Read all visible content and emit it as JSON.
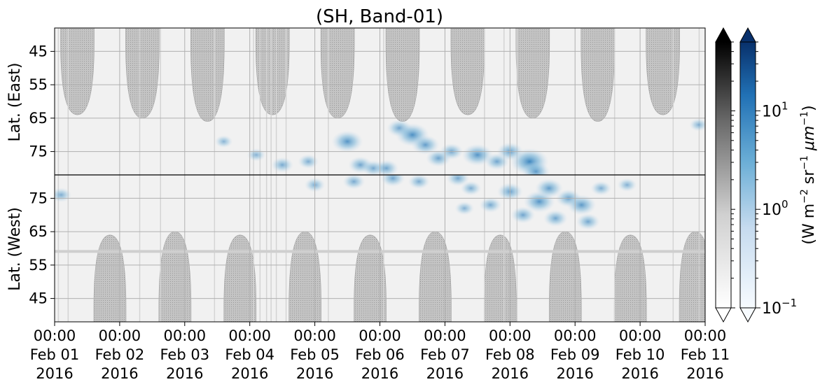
{
  "chart_data": {
    "type": "heatmap",
    "title": "(SH, Band-01)",
    "panels": [
      {
        "name": "east",
        "ylabel": "Lat. (East)",
        "yticks": [
          45,
          55,
          65,
          75
        ],
        "ylim": [
          38,
          82
        ],
        "direction": "down"
      },
      {
        "name": "west",
        "ylabel": "Lat. (West)",
        "yticks": [
          75,
          65,
          55,
          45
        ],
        "ylim": [
          38,
          82
        ],
        "direction": "up"
      }
    ],
    "x_range_days": [
      0,
      10
    ],
    "x_ticks": [
      {
        "time": "00:00",
        "date": "Feb 01",
        "year": "2016"
      },
      {
        "time": "00:00",
        "date": "Feb 02",
        "year": "2016"
      },
      {
        "time": "00:00",
        "date": "Feb 03",
        "year": "2016"
      },
      {
        "time": "00:00",
        "date": "Feb 04",
        "year": "2016"
      },
      {
        "time": "00:00",
        "date": "Feb 05",
        "year": "2016"
      },
      {
        "time": "00:00",
        "date": "Feb 06",
        "year": "2016"
      },
      {
        "time": "00:00",
        "date": "Feb 07",
        "year": "2016"
      },
      {
        "time": "00:00",
        "date": "Feb 08",
        "year": "2016"
      },
      {
        "time": "00:00",
        "date": "Feb 09",
        "year": "2016"
      },
      {
        "time": "00:00",
        "date": "Feb 10",
        "year": "2016"
      },
      {
        "time": "00:00",
        "date": "Feb 11",
        "year": "2016"
      }
    ],
    "grid": true,
    "daylight_arcs_east": [
      0.35,
      1.35,
      2.35,
      3.35,
      4.35,
      5.35,
      6.35,
      7.35,
      8.35,
      9.35
    ],
    "daylight_arcs_west": [
      0.85,
      1.85,
      2.85,
      3.85,
      4.85,
      5.85,
      6.85,
      7.85,
      8.85,
      9.85
    ],
    "blue_patches": [
      {
        "panel": "east",
        "day": 2.6,
        "lat": 72,
        "val": 0.6
      },
      {
        "panel": "east",
        "day": 3.1,
        "lat": 76,
        "val": 0.7
      },
      {
        "panel": "east",
        "day": 3.5,
        "lat": 79,
        "val": 1.2
      },
      {
        "panel": "east",
        "day": 3.9,
        "lat": 78,
        "val": 1.0
      },
      {
        "panel": "east",
        "day": 4.5,
        "lat": 72,
        "val": 2.5
      },
      {
        "panel": "east",
        "day": 4.7,
        "lat": 79,
        "val": 1.5
      },
      {
        "panel": "east",
        "day": 4.9,
        "lat": 80,
        "val": 1.3
      },
      {
        "panel": "east",
        "day": 5.1,
        "lat": 80,
        "val": 1.5
      },
      {
        "panel": "east",
        "day": 5.3,
        "lat": 68,
        "val": 1.6
      },
      {
        "panel": "east",
        "day": 5.5,
        "lat": 70,
        "val": 2.8
      },
      {
        "panel": "east",
        "day": 5.7,
        "lat": 73,
        "val": 2.0
      },
      {
        "panel": "east",
        "day": 5.9,
        "lat": 77,
        "val": 1.6
      },
      {
        "panel": "east",
        "day": 6.1,
        "lat": 75,
        "val": 1.4
      },
      {
        "panel": "east",
        "day": 6.5,
        "lat": 76,
        "val": 2.5
      },
      {
        "panel": "east",
        "day": 6.8,
        "lat": 78,
        "val": 1.5
      },
      {
        "panel": "east",
        "day": 7.0,
        "lat": 75,
        "val": 1.8
      },
      {
        "panel": "east",
        "day": 7.3,
        "lat": 78,
        "val": 3.5
      },
      {
        "panel": "east",
        "day": 7.4,
        "lat": 81,
        "val": 2.0
      },
      {
        "panel": "east",
        "day": 9.9,
        "lat": 67,
        "val": 0.7
      },
      {
        "panel": "west",
        "day": 0.1,
        "lat": 76,
        "val": 1.0
      },
      {
        "panel": "west",
        "day": 4.0,
        "lat": 79,
        "val": 1.0
      },
      {
        "panel": "west",
        "day": 4.6,
        "lat": 80,
        "val": 1.2
      },
      {
        "panel": "west",
        "day": 5.2,
        "lat": 81,
        "val": 1.5
      },
      {
        "panel": "west",
        "day": 5.6,
        "lat": 80,
        "val": 1.1
      },
      {
        "panel": "west",
        "day": 6.2,
        "lat": 81,
        "val": 1.3
      },
      {
        "panel": "west",
        "day": 6.4,
        "lat": 78,
        "val": 1.0
      },
      {
        "panel": "west",
        "day": 6.3,
        "lat": 72,
        "val": 0.8
      },
      {
        "panel": "west",
        "day": 6.7,
        "lat": 73,
        "val": 1.2
      },
      {
        "panel": "west",
        "day": 7.0,
        "lat": 77,
        "val": 1.7
      },
      {
        "panel": "west",
        "day": 7.2,
        "lat": 70,
        "val": 1.5
      },
      {
        "panel": "west",
        "day": 7.45,
        "lat": 74,
        "val": 2.5
      },
      {
        "panel": "west",
        "day": 7.6,
        "lat": 78,
        "val": 2.0
      },
      {
        "panel": "west",
        "day": 7.7,
        "lat": 69,
        "val": 1.5
      },
      {
        "panel": "west",
        "day": 7.9,
        "lat": 75,
        "val": 1.7
      },
      {
        "panel": "west",
        "day": 8.1,
        "lat": 73,
        "val": 2.2
      },
      {
        "panel": "west",
        "day": 8.2,
        "lat": 68,
        "val": 1.4
      },
      {
        "panel": "west",
        "day": 8.4,
        "lat": 78,
        "val": 1.0
      },
      {
        "panel": "west",
        "day": 8.8,
        "lat": 79,
        "val": 0.8
      }
    ],
    "colorbar": {
      "label": "(W m",
      "label_sup1": "−2",
      "label_mid": " sr",
      "label_sup2": "−1",
      "label_mu": " μm",
      "label_sup3": "−1",
      "label_end": ")",
      "scale": "log",
      "range": [
        0.1,
        50
      ],
      "ticks": [
        {
          "base": "10",
          "exp": "−1",
          "value": 0.1
        },
        {
          "base": "10",
          "exp": "0",
          "value": 1
        },
        {
          "base": "10",
          "exp": "1",
          "value": 10
        }
      ],
      "colors": {
        "gray_low": "#ffffff",
        "gray_high": "#000000",
        "blue_low": "#f7fbff",
        "blue_high": "#08306b"
      }
    }
  }
}
